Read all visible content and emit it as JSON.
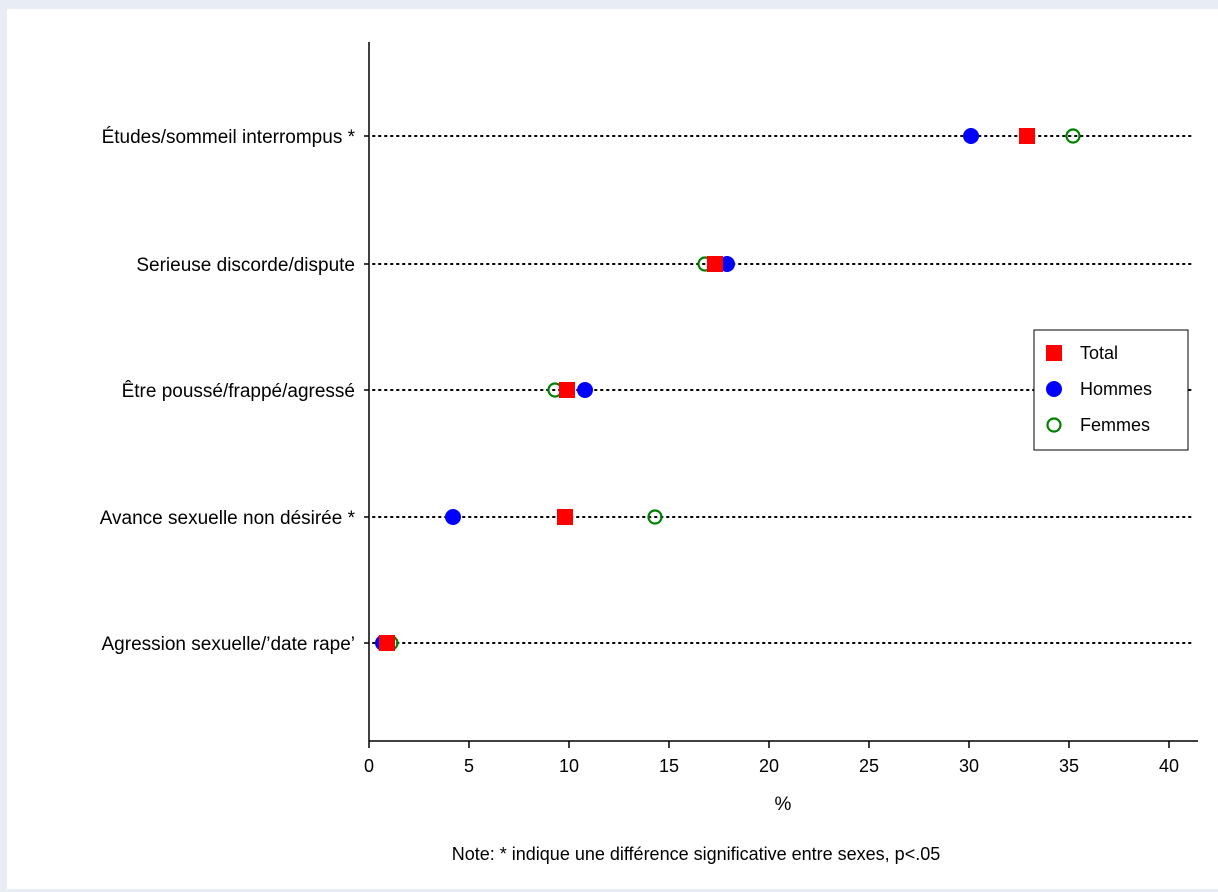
{
  "chart_data": {
    "type": "scatter",
    "subtype": "dot-plot",
    "xlabel": "%",
    "xlim": [
      0,
      41.5
    ],
    "xticks": [
      0,
      5,
      10,
      15,
      20,
      25,
      30,
      35,
      40
    ],
    "categories": [
      "Études/sommeil interrompus *",
      "Serieuse discorde/dispute",
      "Être poussé/frappé/agressé",
      "Avance sexuelle non désirée *",
      "Agression sexuelle/’date rape’"
    ],
    "series": [
      {
        "name": "Total",
        "marker": "square",
        "color": "#ff0000",
        "values": [
          32.9,
          17.3,
          9.9,
          9.8,
          0.9
        ]
      },
      {
        "name": "Hommes",
        "marker": "circle",
        "color": "#0000ff",
        "values": [
          30.1,
          17.9,
          10.8,
          4.2,
          0.7
        ]
      },
      {
        "name": "Femmes",
        "marker": "circle-open",
        "color": "#008000",
        "values": [
          35.2,
          16.8,
          9.3,
          14.3,
          1.1
        ]
      }
    ],
    "legend": {
      "position": "right",
      "entries": [
        "Total",
        "Hommes",
        "Femmes"
      ]
    },
    "grid": "dotted horizontal lines per category",
    "note": "Note: * indique une différence significative entre sexes, p<.05"
  }
}
